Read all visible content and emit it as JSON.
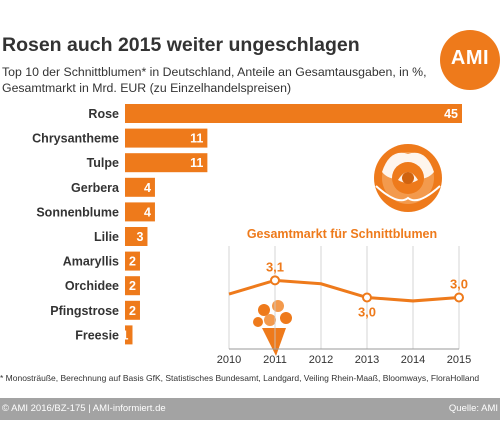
{
  "header": {
    "title": "Rosen auch 2015 weiter ungeschlagen",
    "subtitle": "Top 10 der Schnittblumen* in Deutschland, Anteile an Gesamtausgaben, in %, Gesamtmarkt in Mrd. EUR (zu Einzelhandelspreisen)"
  },
  "logo": {
    "text": "AMI"
  },
  "colors": {
    "accent": "#ee7a1b",
    "line": "#ee7a1b",
    "grid": "#cccccc",
    "footer": "#a3a3a3"
  },
  "icons": {
    "rose": "rose-icon",
    "bouquet": "bouquet-icon"
  },
  "chart_data": [
    {
      "type": "bar",
      "orientation": "horizontal",
      "categories": [
        "Rose",
        "Chrysantheme",
        "Tulpe",
        "Gerbera",
        "Sonnenblume",
        "Lilie",
        "Amaryllis",
        "Orchidee",
        "Pfingstrose",
        "Freesie"
      ],
      "values": [
        45,
        11,
        11,
        4,
        4,
        3,
        2,
        2,
        2,
        1
      ],
      "xlim": [
        0,
        45
      ]
    },
    {
      "type": "line",
      "title": "Gesamtmarkt für Schnittblumen",
      "x": [
        2010,
        2011,
        2012,
        2013,
        2014,
        2015
      ],
      "y": [
        3.02,
        3.1,
        3.08,
        3.0,
        2.98,
        3.0
      ],
      "xlim": [
        2010,
        2015
      ],
      "ylim": [
        2.7,
        3.3
      ],
      "data_labels": [
        {
          "x": 2011,
          "text": "3,1"
        },
        {
          "x": 2013,
          "text": "3,0"
        },
        {
          "x": 2015,
          "text": "3,0"
        }
      ],
      "marked_x": [
        2011,
        2013,
        2015
      ],
      "grid": true
    }
  ],
  "footer": {
    "source_note": "* Monosträuße, Berechnung auf Basis GfK, Statistisches Bundesamt, Landgard, Veiling Rhein-Maaß, Bloomways, FloraHolland",
    "copyright": "© AMI 2016/BZ-175 | AMI-informiert.de",
    "source_label": "Quelle: AMI"
  }
}
